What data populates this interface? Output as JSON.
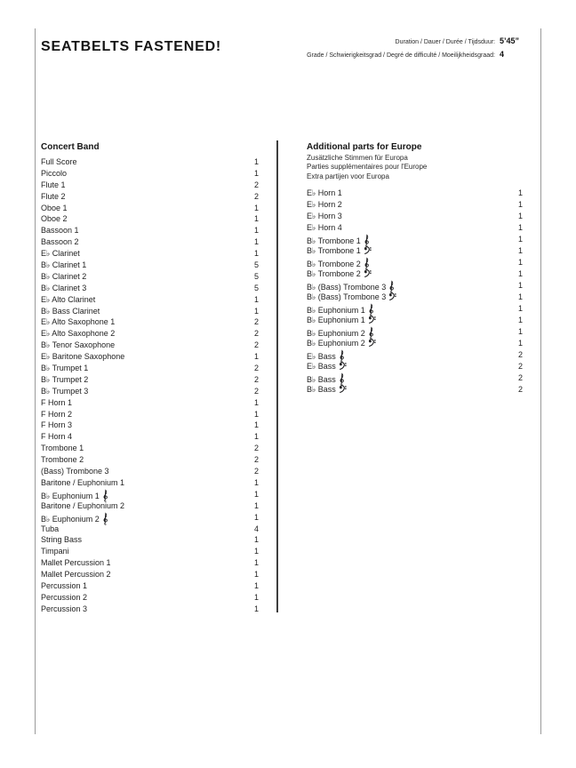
{
  "header": {
    "title": "SEATBELTS FASTENED!",
    "meta": [
      {
        "label": "Duration / Dauer / Durée / Tijdsduur:",
        "value": "5’45”"
      },
      {
        "label": "Grade / Schwierigkeitsgrad / Degré de difficulté / Moeilijkheidsgraad:",
        "value": "4"
      }
    ]
  },
  "concert_band": {
    "heading": "Concert Band",
    "items": [
      {
        "name": "Full Score",
        "qty": "1"
      },
      {
        "name": "Piccolo",
        "qty": "1"
      },
      {
        "name": "Flute 1",
        "qty": "2"
      },
      {
        "name": "Flute 2",
        "qty": "2"
      },
      {
        "name": "Oboe 1",
        "qty": "1"
      },
      {
        "name": "Oboe 2",
        "qty": "1"
      },
      {
        "name": "Bassoon 1",
        "qty": "1"
      },
      {
        "name": "Bassoon 2",
        "qty": "1"
      },
      {
        "name": "E♭ Clarinet",
        "qty": "1"
      },
      {
        "name": "B♭ Clarinet 1",
        "qty": "5"
      },
      {
        "name": "B♭ Clarinet 2",
        "qty": "5"
      },
      {
        "name": "B♭ Clarinet 3",
        "qty": "5"
      },
      {
        "name": "E♭ Alto Clarinet",
        "qty": "1"
      },
      {
        "name": "B♭ Bass Clarinet",
        "qty": "1"
      },
      {
        "name": "E♭ Alto Saxophone 1",
        "qty": "2"
      },
      {
        "name": "E♭ Alto Saxophone 2",
        "qty": "2"
      },
      {
        "name": "B♭ Tenor Saxophone",
        "qty": "2"
      },
      {
        "name": "E♭ Baritone Saxophone",
        "qty": "1"
      },
      {
        "name": "B♭ Trumpet 1",
        "qty": "2"
      },
      {
        "name": "B♭ Trumpet 2",
        "qty": "2"
      },
      {
        "name": "B♭ Trumpet 3",
        "qty": "2"
      },
      {
        "name": "F Horn 1",
        "qty": "1"
      },
      {
        "name": "F Horn 2",
        "qty": "1"
      },
      {
        "name": "F Horn 3",
        "qty": "1"
      },
      {
        "name": "F Horn 4",
        "qty": "1"
      },
      {
        "name": "Trombone 1",
        "qty": "2"
      },
      {
        "name": "Trombone 2",
        "qty": "2"
      },
      {
        "name": "(Bass) Trombone 3",
        "qty": "2"
      },
      {
        "name": "Baritone / Euphonium 1",
        "qty": "1"
      },
      {
        "name": "B♭ Euphonium 1",
        "clef": "treble",
        "qty": "1"
      },
      {
        "name": "Baritone / Euphonium 2",
        "qty": "1"
      },
      {
        "name": "B♭ Euphonium 2",
        "clef": "treble",
        "qty": "1"
      },
      {
        "name": "Tuba",
        "qty": "4"
      },
      {
        "name": "String Bass",
        "qty": "1"
      },
      {
        "name": "Timpani",
        "qty": "1"
      },
      {
        "name": "Mallet Percussion 1",
        "qty": "1"
      },
      {
        "name": "Mallet Percussion 2",
        "qty": "1"
      },
      {
        "name": "Percussion 1",
        "qty": "1"
      },
      {
        "name": "Percussion 2",
        "qty": "1"
      },
      {
        "name": "Percussion 3",
        "qty": "1"
      }
    ]
  },
  "europe": {
    "heading": "Additional parts for Europe",
    "subheadings": [
      "Zusätzliche Stimmen für Europa",
      "Parties supplémentaires pour l'Europe",
      "Extra partijen voor Europa"
    ],
    "items": [
      {
        "name": "E♭ Horn 1",
        "qty": "1"
      },
      {
        "name": "E♭ Horn 2",
        "qty": "1"
      },
      {
        "name": "E♭ Horn 3",
        "qty": "1"
      },
      {
        "name": "E♭ Horn 4",
        "qty": "1"
      },
      {
        "name": "B♭ Trombone 1",
        "clef": "treble",
        "qty": "1"
      },
      {
        "name": "B♭ Trombone 1",
        "clef": "bass",
        "qty": "1"
      },
      {
        "name": "B♭ Trombone 2",
        "clef": "treble",
        "qty": "1"
      },
      {
        "name": "B♭ Trombone 2",
        "clef": "bass",
        "qty": "1"
      },
      {
        "name": "B♭ (Bass) Trombone 3",
        "clef": "treble",
        "qty": "1"
      },
      {
        "name": "B♭ (Bass) Trombone 3",
        "clef": "bass",
        "qty": "1"
      },
      {
        "name": "B♭ Euphonium 1",
        "clef": "treble",
        "qty": "1"
      },
      {
        "name": "B♭ Euphonium 1",
        "clef": "bass",
        "qty": "1"
      },
      {
        "name": "B♭ Euphonium 2",
        "clef": "treble",
        "qty": "1"
      },
      {
        "name": "B♭ Euphonium 2",
        "clef": "bass",
        "qty": "1"
      },
      {
        "name": "E♭ Bass",
        "clef": "treble",
        "qty": "2"
      },
      {
        "name": "E♭ Bass",
        "clef": "bass",
        "qty": "2"
      },
      {
        "name": "B♭ Bass",
        "clef": "treble",
        "qty": "2"
      },
      {
        "name": "B♭ Bass",
        "clef": "bass",
        "qty": "2"
      }
    ]
  },
  "colors": {
    "text": "#1d1d1f",
    "page_edge_rule": "#9a9a9a",
    "column_divider": "#3d3d3d",
    "background": "#ffffff"
  }
}
